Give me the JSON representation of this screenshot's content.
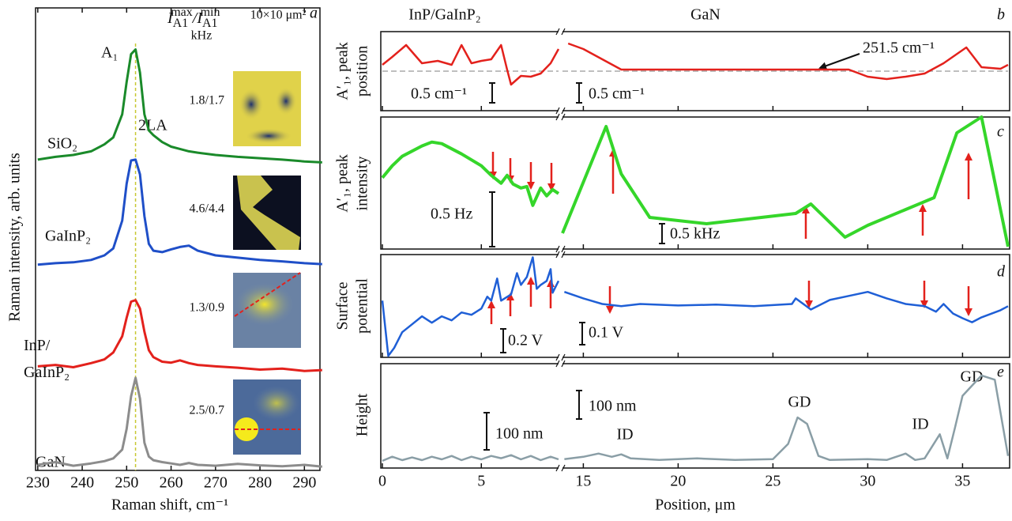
{
  "chart_data": [
    {
      "type": "line",
      "label": "a",
      "xlabel": "Raman shift, cm⁻¹",
      "ylabel": "Raman intensity, arb. units",
      "x": [
        230,
        234,
        238,
        242,
        245,
        247,
        249,
        250,
        251,
        252,
        253,
        254,
        255,
        256,
        258,
        260,
        262,
        264,
        266,
        270,
        275,
        280,
        285,
        290,
        294
      ],
      "series": [
        {
          "name": "GaN",
          "color": "#8c8c8c",
          "values": [
            1.2,
            1.8,
            1.0,
            1.5,
            2.0,
            2.6,
            4.5,
            9,
            16,
            20,
            15.5,
            6,
            3,
            2.2,
            1.8,
            1.5,
            1.2,
            1.6,
            1.2,
            1.0,
            1.4,
            1.1,
            0.9,
            1.2,
            0.8
          ]
        },
        {
          "name": "InP/ GaInP₂",
          "color": "#e3211c",
          "values": [
            22.5,
            22.8,
            22.3,
            23.2,
            24,
            25.5,
            29,
            33,
            36.5,
            36.8,
            35,
            30,
            26,
            24.5,
            23.5,
            23.3,
            23.8,
            23.2,
            22.8,
            22.5,
            22.2,
            21.8,
            22.0,
            21.5,
            21.7
          ]
        },
        {
          "name": "GaInP₂",
          "color": "#1f4fc8",
          "values": [
            44.5,
            44.8,
            45.0,
            45.5,
            46.5,
            48,
            54,
            62,
            67,
            67.2,
            64,
            55,
            49,
            47.5,
            47.2,
            47.8,
            48.3,
            48.6,
            47.5,
            46.5,
            46,
            45.5,
            45.2,
            44.8,
            44.6
          ]
        },
        {
          "name": "SiO₂",
          "color": "#1a8a2a",
          "values": [
            67.2,
            67.8,
            68.2,
            69.0,
            70.5,
            72,
            77,
            84,
            90,
            91,
            86,
            77,
            73.5,
            72.5,
            71,
            70,
            69.5,
            69,
            68.7,
            68.2,
            67.8,
            67.5,
            67.2,
            66.8,
            66.6
          ]
        }
      ],
      "xlim": [
        229.5,
        293.5
      ],
      "xticks": [
        230,
        240,
        250,
        260,
        270,
        280,
        290
      ],
      "ylim": [
        0,
        100
      ],
      "reference_x": 252,
      "peak_labels": [
        "A₁",
        "2LA"
      ],
      "ratio_header": [
        "I",
        "A1",
        "max",
        "/I",
        "A1",
        "min"
      ],
      "ratio_unit": "kHz",
      "image_size": "10×10 μm²",
      "ratios": [
        "1.8/1.7",
        "4.6/4.4",
        "1.3/0.9",
        "2.5/0.7"
      ]
    },
    {
      "type": "line",
      "label": "b",
      "segment_titles": [
        "InP/GaInP₂",
        "GaN"
      ],
      "ylabel": [
        "A′₁, peak",
        "position"
      ],
      "scale_labels": [
        "0.5 cm⁻¹",
        "0.5 cm⁻¹"
      ],
      "annotation": "251.5 cm⁻¹",
      "reference_y": 251.5,
      "ylim": [
        250.5,
        252.5
      ],
      "xlim": [
        0,
        37.4
      ],
      "xbreak": [
        8.9,
        13.9
      ],
      "xticks": [
        0,
        5,
        15,
        20,
        25,
        30,
        35
      ],
      "series": [
        {
          "color": "#e3211c",
          "x": [
            0,
            0.5,
            1.2,
            2,
            2.8,
            3.5,
            4,
            4.5,
            5,
            5.5,
            6,
            6.3,
            6.5,
            7,
            7.5,
            8,
            8.5,
            8.9
          ],
          "values": [
            251.66,
            251.86,
            252.16,
            251.7,
            251.76,
            251.66,
            252.16,
            251.7,
            251.76,
            251.8,
            252.16,
            251.54,
            251.16,
            251.38,
            251.36,
            251.44,
            251.7,
            252.06
          ]
        },
        {
          "color": "#e3211c",
          "x": [
            14.2,
            15,
            16,
            17,
            20,
            25,
            29,
            30,
            31,
            32,
            33,
            34,
            35.2,
            36,
            37,
            37.4
          ],
          "values": [
            252.2,
            252.06,
            251.8,
            251.54,
            251.54,
            251.54,
            251.54,
            251.36,
            251.3,
            251.36,
            251.44,
            251.7,
            252.1,
            251.6,
            251.56,
            251.66
          ]
        }
      ]
    },
    {
      "type": "line",
      "label": "c",
      "ylabel": [
        "A′₁, peak",
        "intensity"
      ],
      "scale_labels": [
        "0.5 Hz",
        "0.5 kHz"
      ],
      "ylim": [
        0,
        1.19
      ],
      "y2lim": [
        0,
        3.34
      ],
      "xlim": [
        0,
        37.4
      ],
      "xbreak": [
        8.9,
        13.9
      ],
      "xticks": [
        0,
        5,
        15,
        20,
        25,
        30,
        35
      ],
      "series": [
        {
          "color": "#35d62a",
          "x": [
            0,
            0.5,
            1,
            2,
            2.5,
            3,
            4,
            5,
            5.5,
            6,
            6.3,
            6.6,
            7,
            7.3,
            7.6,
            8,
            8.3,
            8.6,
            8.9
          ],
          "values": [
            0.643,
            0.75,
            0.836,
            0.929,
            0.964,
            0.95,
            0.857,
            0.75,
            0.664,
            0.593,
            0.664,
            0.586,
            0.55,
            0.564,
            0.393,
            0.55,
            0.479,
            0.536,
            0.5
          ]
        },
        {
          "color": "#35d62a",
          "axis": "y2",
          "x": [
            13.9,
            16.2,
            17,
            18.5,
            21.5,
            26.2,
            27,
            28.8,
            30,
            33.5,
            34.7,
            36,
            37.4
          ],
          "values": [
            0.4,
            3.1,
            1.9,
            0.8,
            0.64,
            0.9,
            1.14,
            0.3,
            0.6,
            1.3,
            2.94,
            3.34,
            0.06
          ]
        }
      ]
    },
    {
      "type": "line",
      "label": "d",
      "ylabel": [
        "Surface",
        "potential"
      ],
      "scale_labels": [
        "0.2 V",
        "0.1 V"
      ],
      "ylim": [
        0,
        0.87
      ],
      "y2lim": [
        0,
        0.46
      ],
      "xlim": [
        0,
        37.4
      ],
      "xbreak": [
        8.9,
        13.9
      ],
      "xticks": [
        0,
        5,
        15,
        20,
        25,
        30,
        35
      ],
      "series": [
        {
          "color": "#1f5fd6",
          "x": [
            0,
            0.3,
            0.6,
            1,
            1.5,
            2,
            2.5,
            3,
            3.5,
            4,
            4.5,
            5,
            5.3,
            5.5,
            5.8,
            6,
            6.5,
            6.8,
            7,
            7.3,
            7.6,
            7.8,
            8,
            8.3,
            8.5,
            8.6,
            8.9
          ],
          "values": [
            0.48,
            0.013,
            0.08,
            0.213,
            0.28,
            0.347,
            0.293,
            0.347,
            0.313,
            0.38,
            0.36,
            0.413,
            0.513,
            0.48,
            0.667,
            0.48,
            0.533,
            0.713,
            0.613,
            0.68,
            0.847,
            0.58,
            0.613,
            0.647,
            0.747,
            0.547,
            0.647
          ]
        },
        {
          "color": "#1f5fd6",
          "axis": "y2",
          "x": [
            14,
            15,
            16,
            17,
            18,
            20,
            22,
            24,
            26,
            26.2,
            27,
            28,
            29,
            30,
            31,
            32,
            33,
            33.6,
            34,
            34.5,
            35,
            35.5,
            36,
            37,
            37.4
          ],
          "values": [
            0.293,
            0.264,
            0.239,
            0.229,
            0.239,
            0.232,
            0.236,
            0.229,
            0.239,
            0.264,
            0.214,
            0.257,
            0.275,
            0.293,
            0.264,
            0.239,
            0.229,
            0.204,
            0.239,
            0.196,
            0.175,
            0.157,
            0.179,
            0.211,
            0.229
          ]
        }
      ]
    },
    {
      "type": "line",
      "label": "e",
      "ylabel": "Height",
      "xlabel": "Position, μm",
      "scale_labels": [
        "100 nm",
        "100 nm"
      ],
      "feature_labels": [
        "ID",
        "GD",
        "ID",
        "GD"
      ],
      "ylim": [
        0,
        276
      ],
      "y2lim": [
        0,
        371
      ],
      "xlim": [
        0,
        37.4
      ],
      "xbreak": [
        8.9,
        13.9
      ],
      "xticks": [
        0,
        5,
        15,
        20,
        25,
        30,
        35
      ],
      "series": [
        {
          "color": "#8a9ea6",
          "x": [
            0,
            0.5,
            1,
            1.5,
            2,
            2.5,
            3,
            3.5,
            4,
            4.5,
            5,
            5.5,
            6,
            6.5,
            7,
            7.5,
            8,
            8.5,
            8.9
          ],
          "values": [
            19,
            30,
            21,
            28,
            21,
            30,
            23,
            32,
            21,
            30,
            23,
            32,
            26,
            34,
            23,
            32,
            21,
            30,
            23
          ]
        },
        {
          "color": "#8a9ea6",
          "axis": "y2",
          "x": [
            14,
            15,
            15.8,
            16.5,
            17,
            17.5,
            19,
            21,
            23,
            25,
            25.8,
            26.3,
            26.8,
            27.4,
            28,
            30,
            31,
            32,
            32.5,
            33,
            33.8,
            34.2,
            34.6,
            35,
            36,
            36.7,
            37.4
          ],
          "values": [
            31.4,
            40,
            51.4,
            40,
            48.6,
            34.3,
            28.6,
            34.3,
            28.6,
            31.4,
            85.7,
            180,
            157,
            42.9,
            28.6,
            31.4,
            28.6,
            51.4,
            28.6,
            34.3,
            120,
            34.3,
            143,
            257,
            329,
            314,
            42.9
          ]
        }
      ]
    }
  ]
}
